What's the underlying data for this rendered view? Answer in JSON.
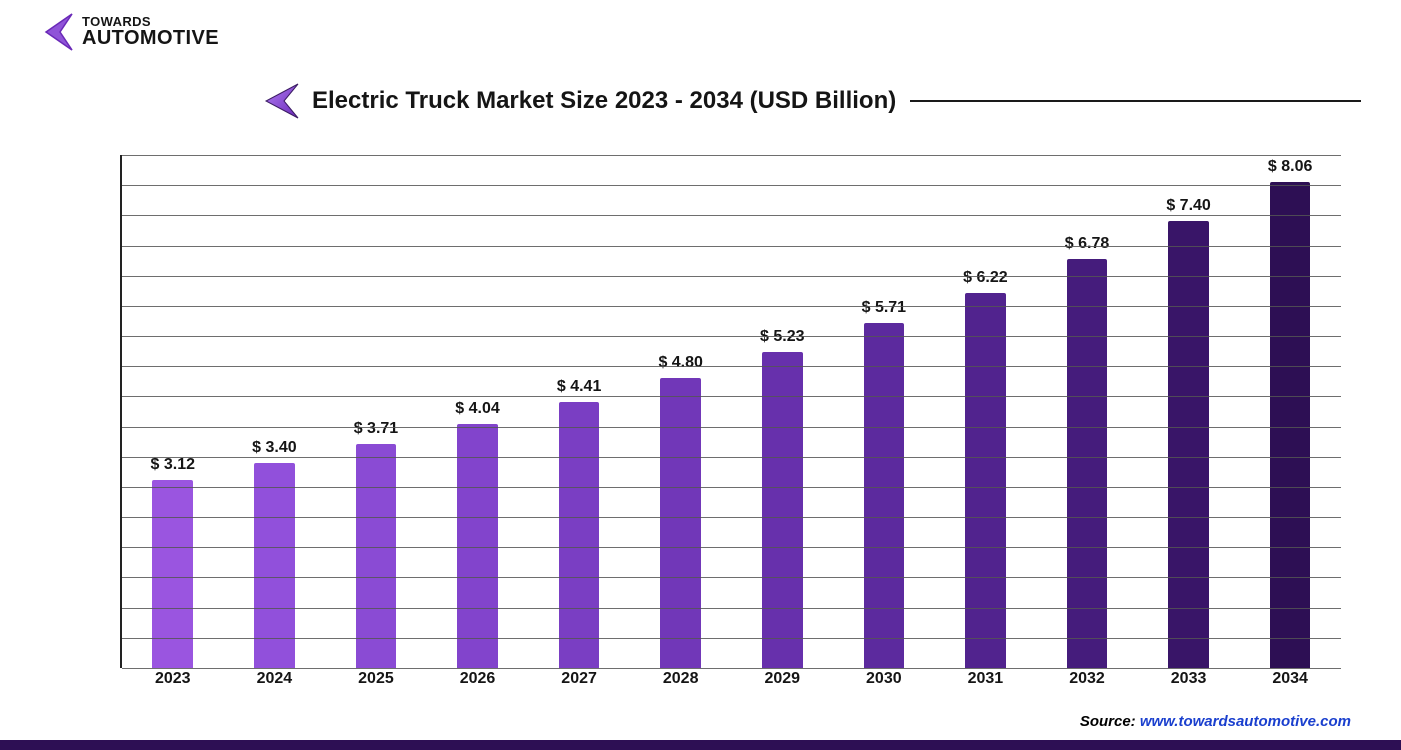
{
  "logo": {
    "line1": "TOWARDS",
    "line2": "AUTOMOTIVE",
    "mark_stroke": "#6a29b8",
    "mark_fill": "#8f54d8",
    "text_color": "#151515"
  },
  "title": {
    "text": "Electric Truck Market Size 2023 - 2034 (USD Billion)",
    "arrow_fill": "#8f3fe0",
    "arrow_stroke": "#3b1c63",
    "rule_color": "#1a1a1a",
    "text_color": "#151515",
    "fontsize": 24
  },
  "chart": {
    "type": "bar",
    "ylim": [
      0,
      8.5
    ],
    "ytick_step": 0.5,
    "gridline_color": "#555555",
    "axis_color": "#222222",
    "bar_width_pct": 40,
    "label_prefix": "$ ",
    "label_fontsize": 16,
    "xlabel_fontsize": 16,
    "categories": [
      "2023",
      "2024",
      "2025",
      "2026",
      "2027",
      "2028",
      "2029",
      "2030",
      "2031",
      "2032",
      "2033",
      "2034"
    ],
    "values": [
      3.12,
      3.4,
      3.71,
      4.04,
      4.41,
      4.8,
      5.23,
      5.71,
      6.22,
      6.78,
      7.4,
      8.06
    ],
    "value_labels": [
      "3.12",
      "3.40",
      "3.71",
      "4.04",
      "4.41",
      "4.80",
      "5.23",
      "5.71",
      "6.22",
      "6.78",
      "7.40",
      "8.06"
    ],
    "bar_colors": [
      "#9a55e0",
      "#9150db",
      "#8a4bd4",
      "#8244cc",
      "#7a3ec3",
      "#7137b8",
      "#6730ac",
      "#5c2a9e",
      "#51238e",
      "#451c7c",
      "#391568",
      "#2d0f54"
    ],
    "label_color": "#151515",
    "background_color": "#ffffff"
  },
  "footer": {
    "source_label": "Source: ",
    "source_link_text": "www.towardsautomotive.com",
    "link_color": "#1a3fce",
    "strip_color": "#2d0f54"
  }
}
